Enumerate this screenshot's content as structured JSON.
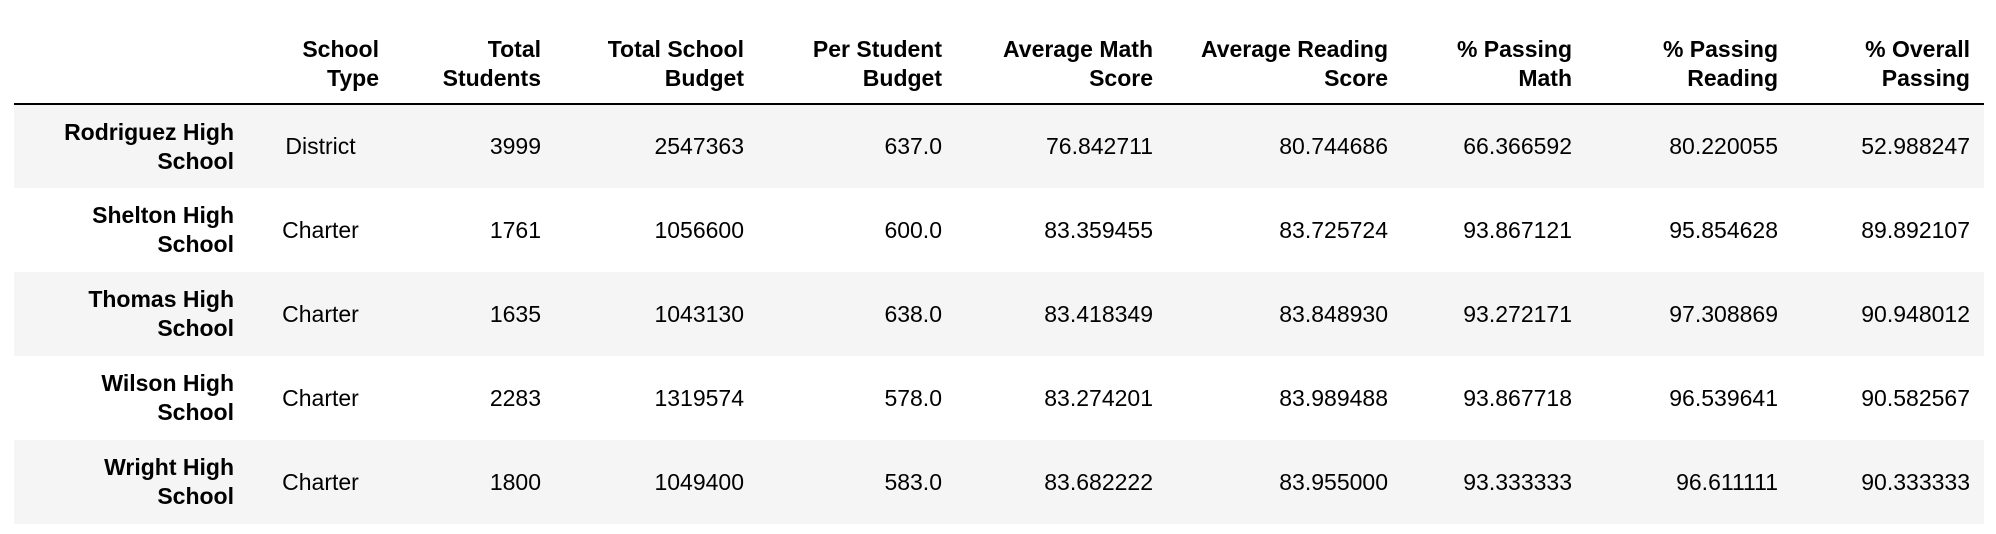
{
  "table": {
    "columns": [
      "",
      "School Type",
      "Total Students",
      "Total School Budget",
      "Per Student Budget",
      "Average Math Score",
      "Average Reading Score",
      "% Passing Math",
      "% Passing Reading",
      "% Overall Passing"
    ],
    "column_lines": [
      [
        "",
        ""
      ],
      [
        "School",
        "Type"
      ],
      [
        "Total",
        "Students"
      ],
      [
        "Total School",
        "Budget"
      ],
      [
        "Per Student",
        "Budget"
      ],
      [
        "Average Math",
        "Score"
      ],
      [
        "Average Reading",
        "Score"
      ],
      [
        "% Passing",
        "Math"
      ],
      [
        "% Passing",
        "Reading"
      ],
      [
        "% Overall",
        "Passing"
      ]
    ],
    "rows": [
      {
        "name_lines": [
          "Rodriguez High",
          "School"
        ],
        "school_type": "District",
        "total_students": "3999",
        "total_budget": "2547363",
        "per_student_budget": "637.0",
        "avg_math": "76.842711",
        "avg_reading": "80.744686",
        "pct_math": "66.366592",
        "pct_reading": "80.220055",
        "pct_overall": "52.988247"
      },
      {
        "name_lines": [
          "Shelton High",
          "School"
        ],
        "school_type": "Charter",
        "total_students": "1761",
        "total_budget": "1056600",
        "per_student_budget": "600.0",
        "avg_math": "83.359455",
        "avg_reading": "83.725724",
        "pct_math": "93.867121",
        "pct_reading": "95.854628",
        "pct_overall": "89.892107"
      },
      {
        "name_lines": [
          "Thomas High",
          "School"
        ],
        "school_type": "Charter",
        "total_students": "1635",
        "total_budget": "1043130",
        "per_student_budget": "638.0",
        "avg_math": "83.418349",
        "avg_reading": "83.848930",
        "pct_math": "93.272171",
        "pct_reading": "97.308869",
        "pct_overall": "90.948012"
      },
      {
        "name_lines": [
          "Wilson High",
          "School"
        ],
        "school_type": "Charter",
        "total_students": "2283",
        "total_budget": "1319574",
        "per_student_budget": "578.0",
        "avg_math": "83.274201",
        "avg_reading": "83.989488",
        "pct_math": "93.867718",
        "pct_reading": "96.539641",
        "pct_overall": "90.582567"
      },
      {
        "name_lines": [
          "Wright High",
          "School"
        ],
        "school_type": "Charter",
        "total_students": "1800",
        "total_budget": "1049400",
        "per_student_budget": "583.0",
        "avg_math": "83.682222",
        "avg_reading": "83.955000",
        "pct_math": "93.333333",
        "pct_reading": "96.611111",
        "pct_overall": "90.333333"
      }
    ]
  }
}
